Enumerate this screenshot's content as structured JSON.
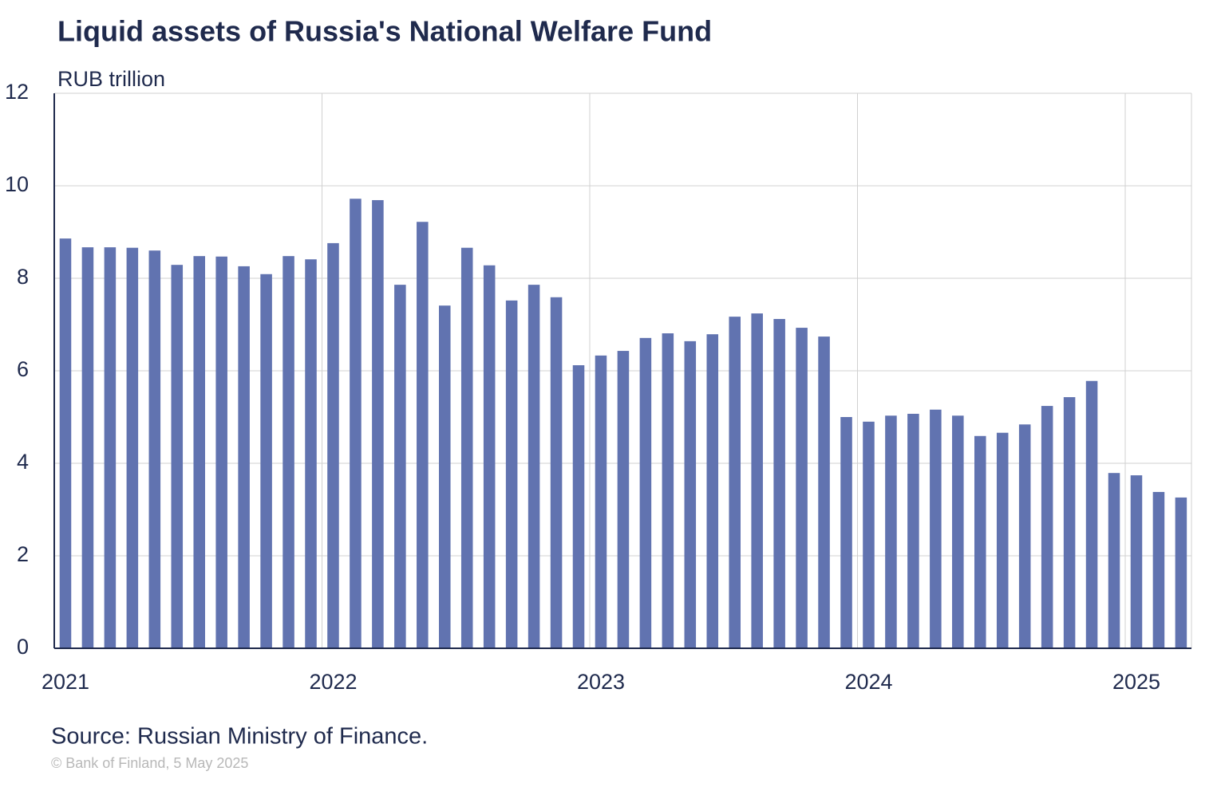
{
  "chart_data": {
    "type": "bar",
    "title": "Liquid assets of Russia's National Welfare Fund",
    "subtitle": "RUB trillion",
    "source": "Source: Russian Ministry of Finance.",
    "credit": "© Bank of Finland, 5 May 2025",
    "categories": [
      "2021",
      null,
      null,
      null,
      null,
      null,
      null,
      null,
      null,
      null,
      null,
      null,
      "2022",
      null,
      null,
      null,
      null,
      null,
      null,
      null,
      null,
      null,
      null,
      null,
      "2023",
      null,
      null,
      null,
      null,
      null,
      null,
      null,
      null,
      null,
      null,
      null,
      "2024",
      null,
      null,
      null,
      null,
      null,
      null,
      null,
      null,
      null,
      null,
      null,
      "2025",
      null,
      null
    ],
    "values": [
      8.86,
      8.67,
      8.67,
      8.66,
      8.6,
      8.29,
      8.48,
      8.47,
      8.26,
      8.09,
      8.48,
      8.41,
      8.76,
      9.72,
      9.69,
      7.86,
      9.22,
      7.41,
      8.66,
      8.28,
      7.52,
      7.86,
      7.59,
      6.12,
      6.33,
      6.43,
      6.71,
      6.81,
      6.64,
      6.79,
      7.17,
      7.24,
      7.12,
      6.93,
      6.74,
      5.0,
      4.9,
      5.03,
      5.07,
      5.16,
      5.03,
      4.59,
      4.66,
      4.84,
      5.24,
      5.43,
      5.78,
      3.79,
      3.74,
      3.38,
      3.26
    ],
    "color": "#6173b0",
    "ylim": [
      0,
      12
    ],
    "yticks": [
      0,
      2,
      4,
      6,
      8,
      10,
      12
    ],
    "grid": true
  }
}
